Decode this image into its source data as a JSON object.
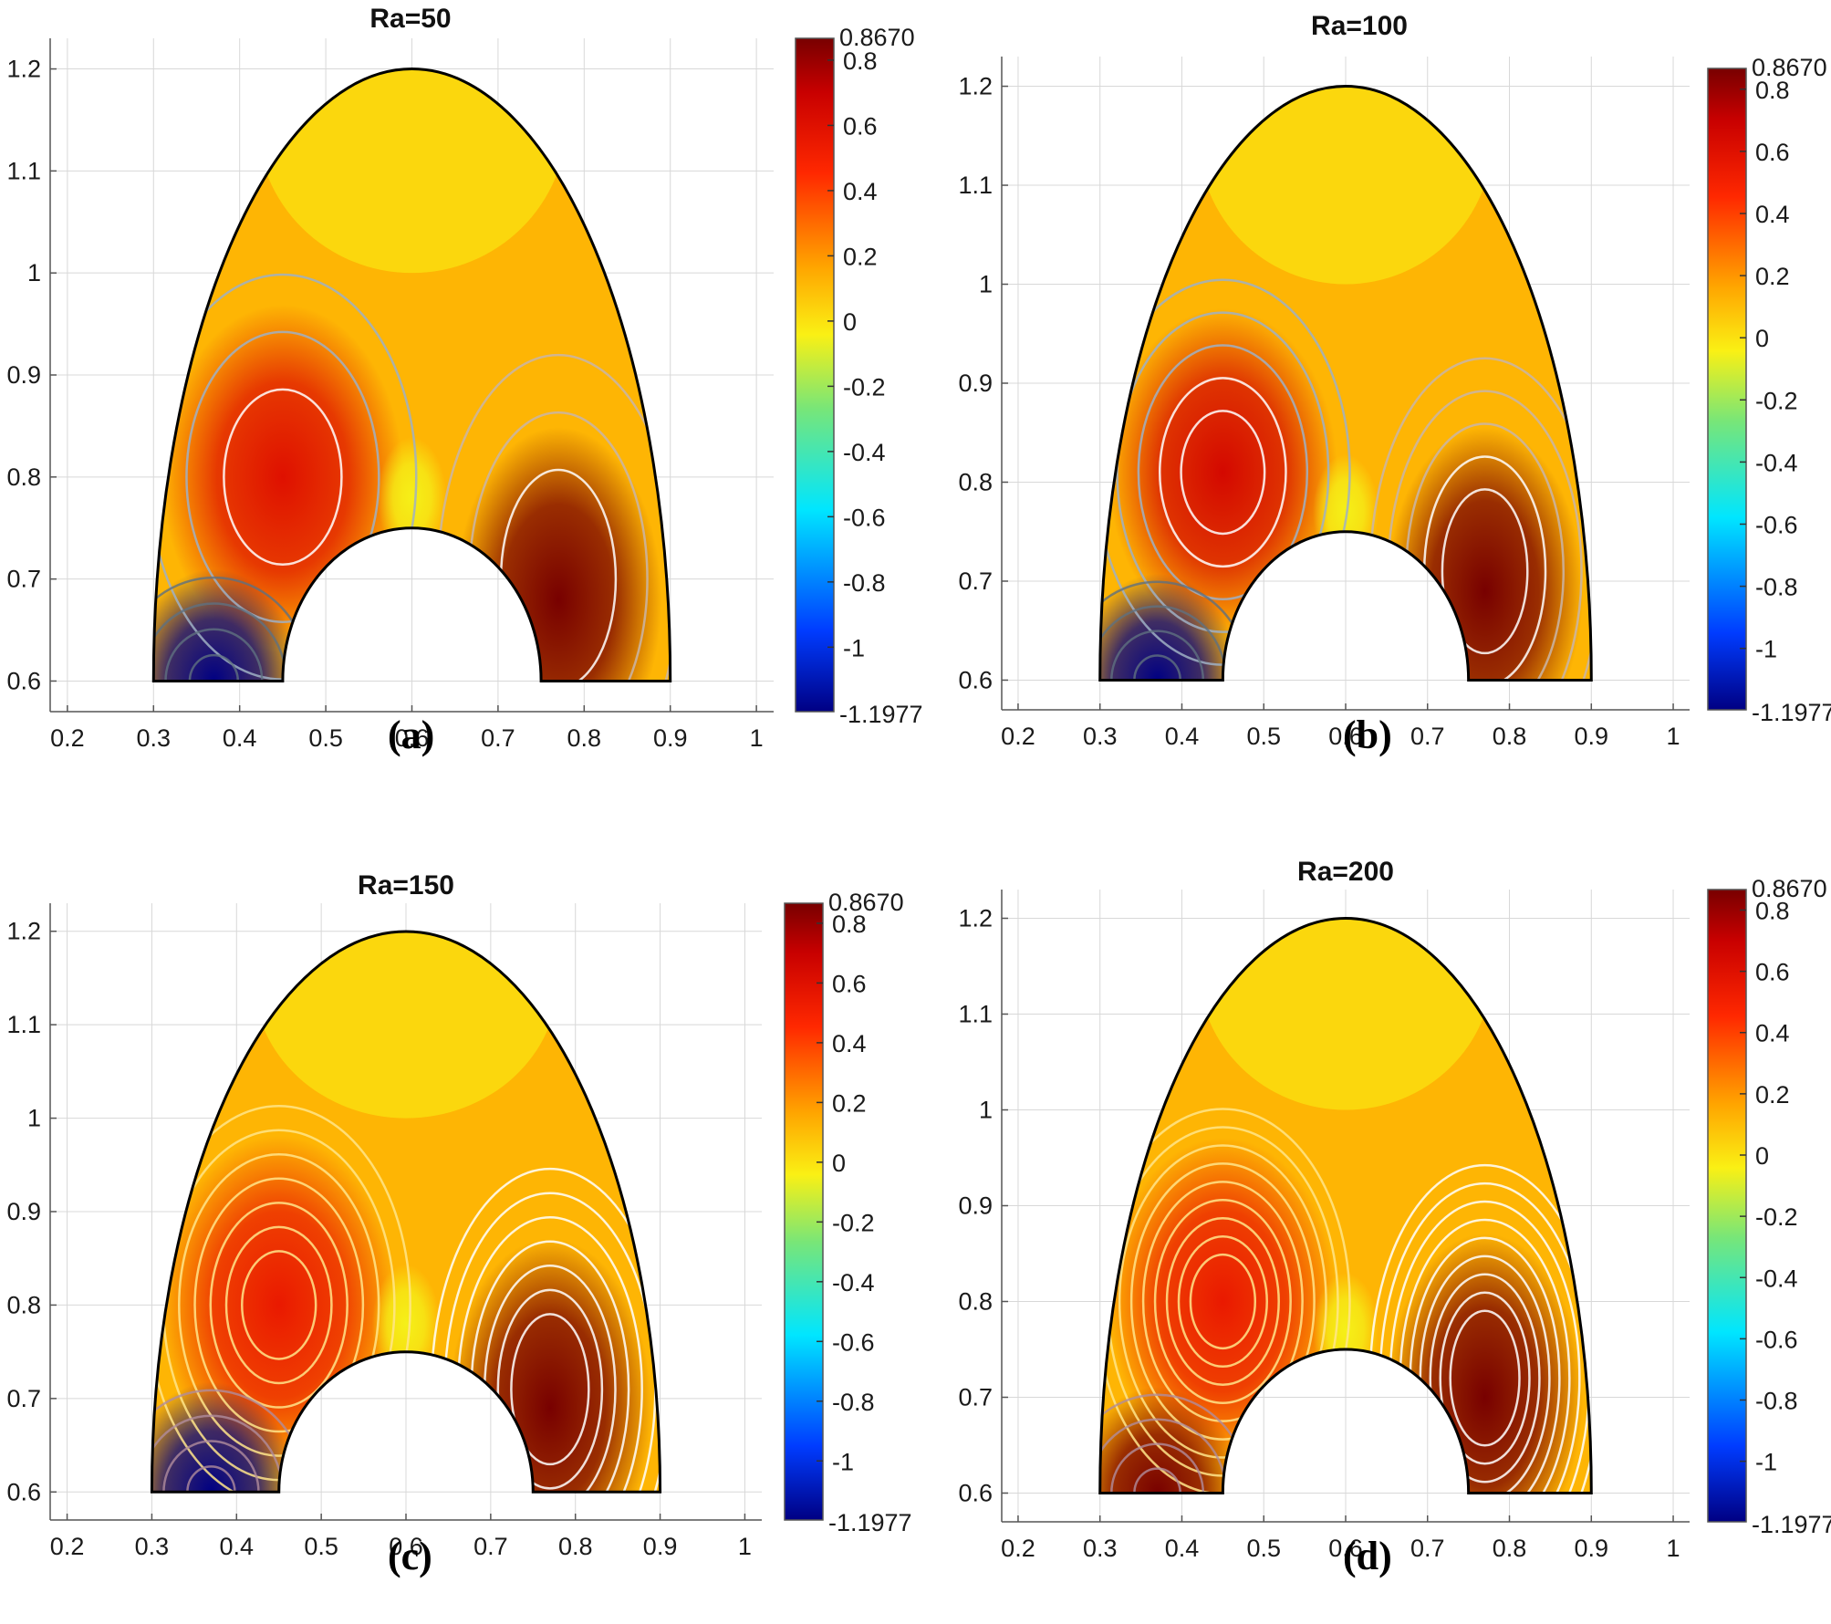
{
  "chart_data": [
    {
      "type": "contour",
      "title": "Ra=50",
      "caption": "(a)",
      "xlim": [
        0.18,
        1.02
      ],
      "ylim": [
        0.57,
        1.23
      ],
      "xticks": [
        0.2,
        0.3,
        0.4,
        0.5,
        0.6,
        0.7,
        0.8,
        0.9,
        1
      ],
      "yticks": [
        0.6,
        0.7,
        0.8,
        0.9,
        1,
        1.1,
        1.2
      ],
      "colorbar": {
        "min": -1.1977,
        "max": 0.867,
        "min_label": "-1.1977",
        "max_label": "0.8670",
        "ticks": [
          0.8,
          0.6,
          0.4,
          0.2,
          0,
          -0.2,
          -0.4,
          -0.6,
          -0.8,
          -1
        ]
      },
      "domain": {
        "outer_center_x": 0.6,
        "outer_semi_axis_x": 0.3,
        "outer_top_y": 1.2,
        "base_y": 0.6,
        "inner_center_x": 0.6,
        "inner_radius": 0.15
      },
      "features": [
        {
          "x": 0.45,
          "y": 0.8,
          "value": 0.6,
          "kind": "left vortex"
        },
        {
          "x": 0.77,
          "y": 0.68,
          "value": 0.867,
          "kind": "right vortex"
        },
        {
          "x": 0.6,
          "y": 0.78,
          "value": -0.05,
          "kind": "secondary cell"
        },
        {
          "x": 0.37,
          "y": 0.6,
          "value": -1.1977,
          "kind": "bottom-left minimum"
        }
      ]
    },
    {
      "type": "contour",
      "title": "Ra=100",
      "caption": "(b)",
      "xlim": [
        0.18,
        1.02
      ],
      "ylim": [
        0.57,
        1.23
      ],
      "xticks": [
        0.2,
        0.3,
        0.4,
        0.5,
        0.6,
        0.7,
        0.8,
        0.9,
        1
      ],
      "yticks": [
        0.6,
        0.7,
        0.8,
        0.9,
        1,
        1.1,
        1.2
      ],
      "colorbar": {
        "min": -1.1977,
        "max": 0.867,
        "min_label": "-1.1977",
        "max_label": "0.8670",
        "ticks": [
          0.8,
          0.6,
          0.4,
          0.2,
          0,
          -0.2,
          -0.4,
          -0.6,
          -0.8,
          -1
        ]
      },
      "domain": {
        "outer_center_x": 0.6,
        "outer_semi_axis_x": 0.3,
        "outer_top_y": 1.2,
        "base_y": 0.6,
        "inner_center_x": 0.6,
        "inner_radius": 0.15
      },
      "features": [
        {
          "x": 0.45,
          "y": 0.81,
          "value": 0.65,
          "kind": "left vortex"
        },
        {
          "x": 0.77,
          "y": 0.69,
          "value": 0.867,
          "kind": "right vortex"
        },
        {
          "x": 0.6,
          "y": 0.77,
          "value": -0.05,
          "kind": "secondary cell"
        },
        {
          "x": 0.37,
          "y": 0.6,
          "value": -1.1977,
          "kind": "bottom-left minimum"
        }
      ]
    },
    {
      "type": "contour",
      "title": "Ra=150",
      "caption": "(c)",
      "xlim": [
        0.18,
        1.02
      ],
      "ylim": [
        0.57,
        1.23
      ],
      "xticks": [
        0.2,
        0.3,
        0.4,
        0.5,
        0.6,
        0.7,
        0.8,
        0.9,
        1
      ],
      "yticks": [
        0.6,
        0.7,
        0.8,
        0.9,
        1,
        1.1,
        1.2
      ],
      "colorbar": {
        "min": -1.1977,
        "max": 0.867,
        "min_label": "-1.1977",
        "max_label": "0.8670",
        "ticks": [
          0.8,
          0.6,
          0.4,
          0.2,
          0,
          -0.2,
          -0.4,
          -0.6,
          -0.8,
          -1
        ]
      },
      "domain": {
        "outer_center_x": 0.6,
        "outer_semi_axis_x": 0.3,
        "outer_top_y": 1.2,
        "base_y": 0.6,
        "inner_center_x": 0.6,
        "inner_radius": 0.15
      },
      "features": [
        {
          "x": 0.45,
          "y": 0.8,
          "value": 0.55,
          "kind": "left vortex"
        },
        {
          "x": 0.77,
          "y": 0.69,
          "value": 0.867,
          "kind": "right vortex"
        },
        {
          "x": 0.6,
          "y": 0.78,
          "value": -0.05,
          "kind": "secondary cell"
        },
        {
          "x": 0.37,
          "y": 0.6,
          "value": -1.1977,
          "kind": "bottom-left minimum"
        }
      ]
    },
    {
      "type": "contour",
      "title": "Ra=200",
      "caption": "(d)",
      "xlim": [
        0.18,
        1.02
      ],
      "ylim": [
        0.57,
        1.23
      ],
      "xticks": [
        0.2,
        0.3,
        0.4,
        0.5,
        0.6,
        0.7,
        0.8,
        0.9,
        1
      ],
      "yticks": [
        0.6,
        0.7,
        0.8,
        0.9,
        1,
        1.1,
        1.2
      ],
      "colorbar": {
        "min": -1.1977,
        "max": 0.867,
        "min_label": "-1.1977",
        "max_label": "0.8670",
        "ticks": [
          0.8,
          0.6,
          0.4,
          0.2,
          0,
          -0.2,
          -0.4,
          -0.6,
          -0.8,
          -1
        ]
      },
      "domain": {
        "outer_center_x": 0.6,
        "outer_semi_axis_x": 0.3,
        "outer_top_y": 1.2,
        "base_y": 0.6,
        "inner_center_x": 0.6,
        "inner_radius": 0.15
      },
      "features": [
        {
          "x": 0.45,
          "y": 0.8,
          "value": 0.55,
          "kind": "left vortex"
        },
        {
          "x": 0.77,
          "y": 0.7,
          "value": 0.867,
          "kind": "right vortex"
        },
        {
          "x": 0.6,
          "y": 0.77,
          "value": -0.05,
          "kind": "secondary cell"
        },
        {
          "x": 0.37,
          "y": 0.6,
          "value": 0.867,
          "kind": "bottom-left dark core"
        }
      ]
    }
  ]
}
